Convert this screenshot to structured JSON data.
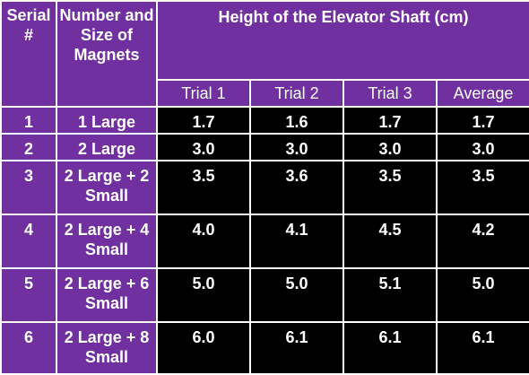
{
  "table": {
    "headers": {
      "serial": "Serial #",
      "magnets": "Number and Size of Magnets",
      "height": "Height of the Elevator Shaft (cm)",
      "trials": [
        "Trial 1",
        "Trial 2",
        "Trial 3",
        "Average"
      ]
    },
    "rows": [
      {
        "serial": "1",
        "magnets": "1 Large",
        "values": [
          "1.7",
          "1.6",
          "1.7",
          "1.7"
        ]
      },
      {
        "serial": "2",
        "magnets": "2 Large",
        "values": [
          "3.0",
          "3.0",
          "3.0",
          "3.0"
        ]
      },
      {
        "serial": "3",
        "magnets": "2 Large + 2 Small",
        "values": [
          "3.5",
          "3.6",
          "3.5",
          "3.5"
        ]
      },
      {
        "serial": "4",
        "magnets": "2 Large + 4 Small",
        "values": [
          "4.0",
          "4.1",
          "4.5",
          "4.2"
        ]
      },
      {
        "serial": "5",
        "magnets": "2 Large + 6 Small",
        "values": [
          "5.0",
          "5.0",
          "5.1",
          "5.0"
        ]
      },
      {
        "serial": "6",
        "magnets": "2 Large + 8 Small",
        "values": [
          "6.0",
          "6.1",
          "6.1",
          "6.1"
        ]
      }
    ],
    "colors": {
      "header_bg": "#7030a0",
      "value_bg": "#000000",
      "text": "#ffffff",
      "border": "#ffffff"
    }
  }
}
